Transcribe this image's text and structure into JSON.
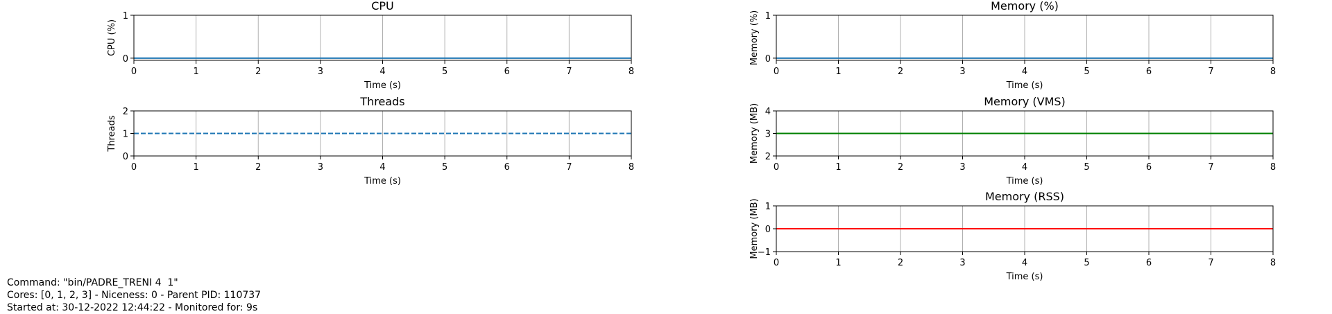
{
  "chart_data": [
    {
      "type": "line",
      "title": "CPU",
      "xlabel": "Time (s)",
      "ylabel": "CPU (%)",
      "xlim": [
        0,
        8
      ],
      "ylim": [
        -0.05,
        1
      ],
      "xticks": [
        "0",
        "1",
        "2",
        "3",
        "4",
        "5",
        "6",
        "7",
        "8"
      ],
      "yticks": [
        "0",
        "1"
      ],
      "grid": "x",
      "series": [
        {
          "x": [
            0,
            8
          ],
          "y": [
            0,
            0
          ],
          "color": "#1f77b4",
          "style": "solid"
        }
      ]
    },
    {
      "type": "line",
      "title": "Memory (%)",
      "xlabel": "Time (s)",
      "ylabel": "Memory (%)",
      "xlim": [
        0,
        8
      ],
      "ylim": [
        -0.05,
        1
      ],
      "xticks": [
        "0",
        "1",
        "2",
        "3",
        "4",
        "5",
        "6",
        "7",
        "8"
      ],
      "yticks": [
        "0",
        "1"
      ],
      "grid": "x",
      "series": [
        {
          "x": [
            0,
            8
          ],
          "y": [
            0,
            0
          ],
          "color": "#1f77b4",
          "style": "solid"
        }
      ]
    },
    {
      "type": "line",
      "title": "Threads",
      "xlabel": "Time (s)",
      "ylabel": "Threads",
      "xlim": [
        0,
        8
      ],
      "ylim": [
        0,
        2
      ],
      "xticks": [
        "0",
        "1",
        "2",
        "3",
        "4",
        "5",
        "6",
        "7",
        "8"
      ],
      "yticks": [
        "0",
        "1",
        "2"
      ],
      "grid": "x",
      "series": [
        {
          "x": [
            0,
            8
          ],
          "y": [
            1,
            1
          ],
          "color": "#1f77b4",
          "style": "dashed"
        }
      ]
    },
    {
      "type": "line",
      "title": "Memory (VMS)",
      "xlabel": "Time (s)",
      "ylabel": "Memory (MB)",
      "xlim": [
        0,
        8
      ],
      "ylim": [
        2,
        4
      ],
      "xticks": [
        "0",
        "1",
        "2",
        "3",
        "4",
        "5",
        "6",
        "7",
        "8"
      ],
      "yticks": [
        "2",
        "3",
        "4"
      ],
      "grid": "x",
      "series": [
        {
          "x": [
            0,
            8
          ],
          "y": [
            3,
            3
          ],
          "color": "#008000",
          "style": "solid"
        }
      ]
    },
    {
      "type": "line",
      "title": "Memory (RSS)",
      "xlabel": "Time (s)",
      "ylabel": "Memory (MB)",
      "xlim": [
        0,
        8
      ],
      "ylim": [
        -1,
        1
      ],
      "xticks": [
        "0",
        "1",
        "2",
        "3",
        "4",
        "5",
        "6",
        "7",
        "8"
      ],
      "yticks": [
        "−1",
        "0",
        "1"
      ],
      "grid": "x",
      "series": [
        {
          "x": [
            0,
            8
          ],
          "y": [
            0,
            0
          ],
          "color": "#ff0000",
          "style": "solid"
        }
      ]
    }
  ],
  "info": {
    "command": "Command: \"bin/PADRE_TRENI 4  1\"",
    "cores": "Cores: [0, 1, 2, 3] - Niceness: 0 - Parent PID: 110737",
    "started": "Started at: 30-12-2022 12:44:22 - Monitored for: 9s"
  }
}
